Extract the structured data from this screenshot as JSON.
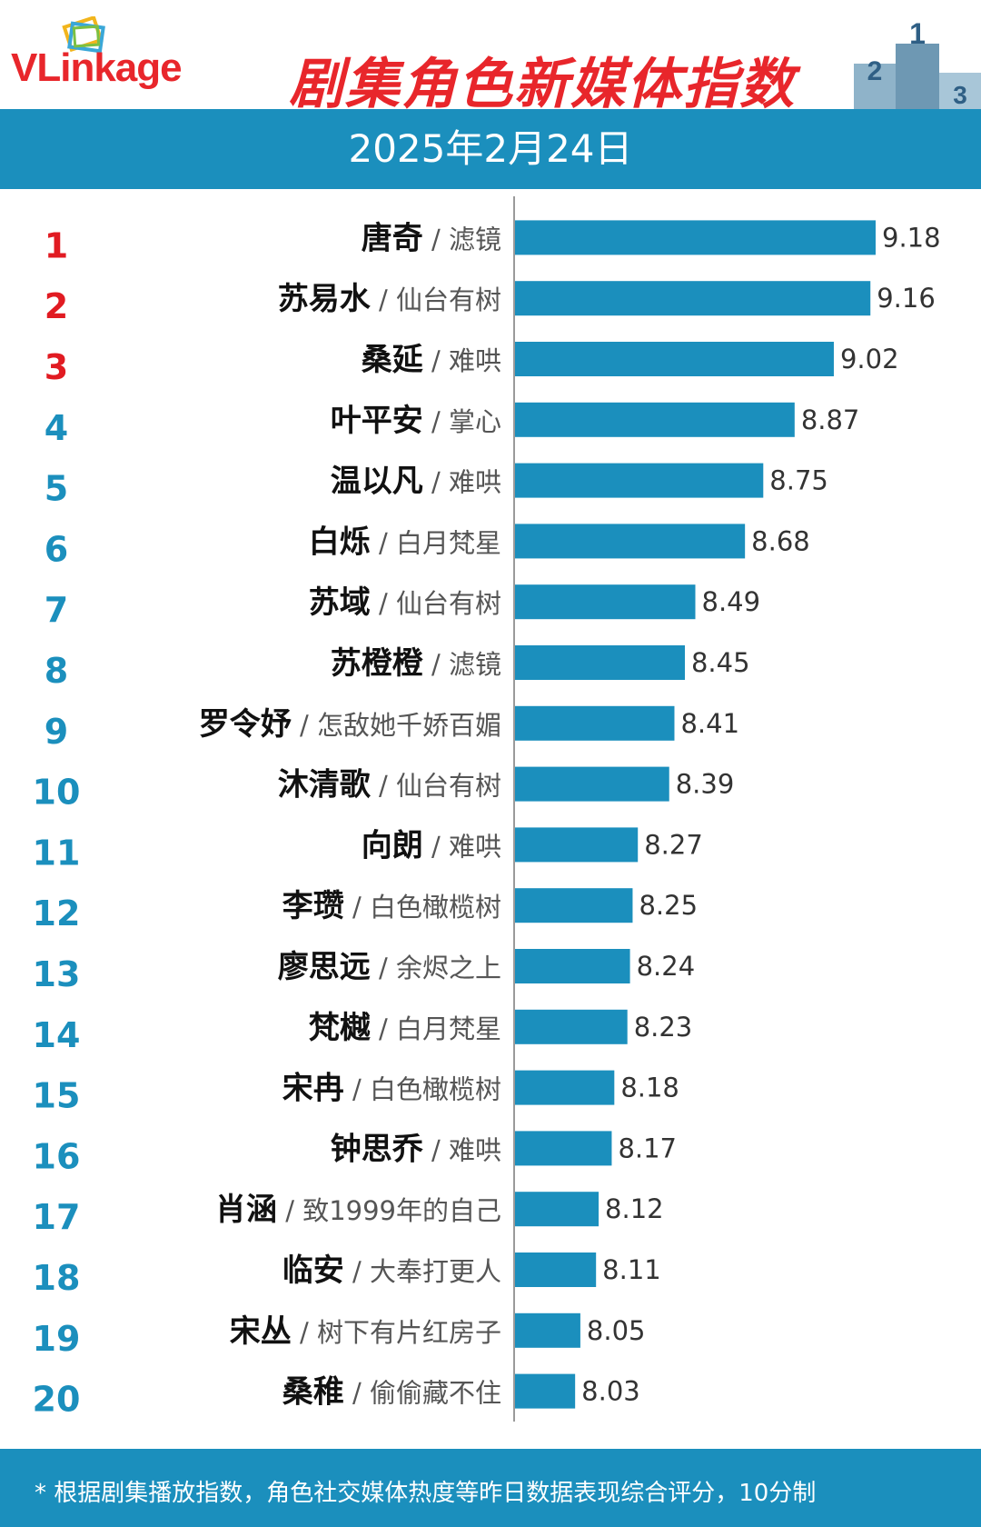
{
  "header": {
    "logo_text": "VLinkage",
    "title": "剧集角色新媒体指数",
    "date": "2025年2月24日",
    "podium_labels": [
      "2",
      "1",
      "3"
    ]
  },
  "colors": {
    "bar": "#1b8fbd",
    "rank_top": "#e11b22",
    "rank_other": "#1b8fbd",
    "title": "#e8262b"
  },
  "chart_data": {
    "type": "bar",
    "orientation": "horizontal",
    "categories": [
      "唐奇 / 滤镜",
      "苏易水 / 仙台有树",
      "桑延 / 难哄",
      "叶平安 / 掌心",
      "温以凡 / 难哄",
      "白烁 / 白月梵星",
      "苏域 / 仙台有树",
      "苏橙橙 / 滤镜",
      "罗令妤 / 怎敌她千娇百媚",
      "沐清歌 / 仙台有树",
      "向朗 / 难哄",
      "李瓒 / 白色橄榄树",
      "廖思远 / 余烬之上",
      "梵樾 / 白月梵星",
      "宋冉 / 白色橄榄树",
      "钟思乔 / 难哄",
      "肖涵 / 致1999年的自己",
      "临安 / 大奉打更人",
      "宋丛 / 树下有片红房子",
      "桑稚 / 偷偷藏不住"
    ],
    "values": [
      9.18,
      9.16,
      9.02,
      8.87,
      8.75,
      8.68,
      8.49,
      8.45,
      8.41,
      8.39,
      8.27,
      8.25,
      8.24,
      8.23,
      8.18,
      8.17,
      8.12,
      8.11,
      8.05,
      8.03
    ],
    "rows": [
      {
        "rank": "1",
        "name": "唐奇",
        "drama": "滤镜",
        "value": "9.18"
      },
      {
        "rank": "2",
        "name": "苏易水",
        "drama": "仙台有树",
        "value": "9.16"
      },
      {
        "rank": "3",
        "name": "桑延",
        "drama": "难哄",
        "value": "9.02"
      },
      {
        "rank": "4",
        "name": "叶平安",
        "drama": "掌心",
        "value": "8.87"
      },
      {
        "rank": "5",
        "name": "温以凡",
        "drama": "难哄",
        "value": "8.75"
      },
      {
        "rank": "6",
        "name": "白烁",
        "drama": "白月梵星",
        "value": "8.68"
      },
      {
        "rank": "7",
        "name": "苏域",
        "drama": "仙台有树",
        "value": "8.49"
      },
      {
        "rank": "8",
        "name": "苏橙橙",
        "drama": "滤镜",
        "value": "8.45"
      },
      {
        "rank": "9",
        "name": "罗令妤",
        "drama": "怎敌她千娇百媚",
        "value": "8.41"
      },
      {
        "rank": "10",
        "name": "沐清歌",
        "drama": "仙台有树",
        "value": "8.39"
      },
      {
        "rank": "11",
        "name": "向朗",
        "drama": "难哄",
        "value": "8.27"
      },
      {
        "rank": "12",
        "name": "李瓒",
        "drama": "白色橄榄树",
        "value": "8.25"
      },
      {
        "rank": "13",
        "name": "廖思远",
        "drama": "余烬之上",
        "value": "8.24"
      },
      {
        "rank": "14",
        "name": "梵樾",
        "drama": "白月梵星",
        "value": "8.23"
      },
      {
        "rank": "15",
        "name": "宋冉",
        "drama": "白色橄榄树",
        "value": "8.18"
      },
      {
        "rank": "16",
        "name": "钟思乔",
        "drama": "难哄",
        "value": "8.17"
      },
      {
        "rank": "17",
        "name": "肖涵",
        "drama": "致1999年的自己",
        "value": "8.12"
      },
      {
        "rank": "18",
        "name": "临安",
        "drama": "大奉打更人",
        "value": "8.11"
      },
      {
        "rank": "19",
        "name": "宋丛",
        "drama": "树下有片红房子",
        "value": "8.05"
      },
      {
        "rank": "20",
        "name": "桑稚",
        "drama": "偷偷藏不住",
        "value": "8.03"
      }
    ],
    "separator": " / ",
    "xlim": [
      7.8,
      9.18
    ],
    "grid": false,
    "legend": "none"
  },
  "footer": {
    "note": "* 根据剧集播放指数，角色社交媒体热度等昨日数据表现综合评分，10分制"
  }
}
